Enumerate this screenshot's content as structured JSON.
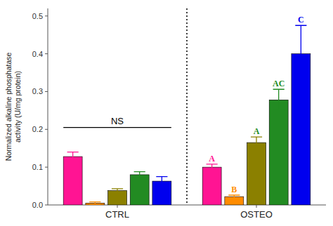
{
  "chart_data": {
    "type": "bar",
    "categories": [
      "CTRL",
      "OSTEO"
    ],
    "series": [
      {
        "color": "#FF1493",
        "values": [
          0.128,
          0.1
        ],
        "errors": [
          0.012,
          0.008
        ],
        "labels": [
          null,
          "A"
        ],
        "label_colors": [
          null,
          "#FF1493"
        ]
      },
      {
        "color": "#FF8C00",
        "values": [
          0.005,
          0.022
        ],
        "errors": [
          0.003,
          0.004
        ],
        "labels": [
          null,
          "B"
        ],
        "label_colors": [
          null,
          "#FF8C00"
        ]
      },
      {
        "color": "#8B8000",
        "values": [
          0.038,
          0.165
        ],
        "errors": [
          0.005,
          0.015
        ],
        "labels": [
          null,
          "A"
        ],
        "label_colors": [
          null,
          "#228B22"
        ]
      },
      {
        "color": "#228B22",
        "values": [
          0.08,
          0.278
        ],
        "errors": [
          0.008,
          0.028
        ],
        "labels": [
          null,
          "AC"
        ],
        "label_colors": [
          null,
          "#228B22"
        ]
      },
      {
        "color": "#0000EE",
        "values": [
          0.063,
          0.4
        ],
        "errors": [
          0.012,
          0.075
        ],
        "labels": [
          null,
          "C"
        ],
        "label_colors": [
          null,
          "#0000EE"
        ]
      }
    ],
    "annotations": [
      {
        "text": "NS",
        "category": "CTRL",
        "y": 0.205
      }
    ],
    "ylabel": "Normalized alkaline phosphatase\nactivity (U/mg protein)",
    "ylim": [
      0,
      0.52
    ],
    "yticks": [
      {
        "value": 0.0,
        "label": "0.0"
      },
      0.1,
      0.2,
      0.3,
      0.4,
      0.5
    ],
    "grid": false
  }
}
